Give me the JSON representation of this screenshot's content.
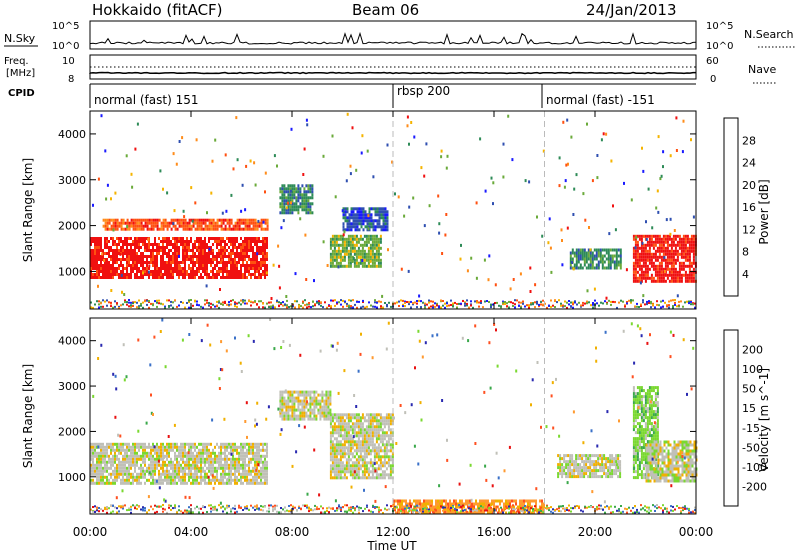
{
  "header": {
    "station": "Hokkaido (fitACF)",
    "beam": "Beam 06",
    "date": "24/Jan/2013"
  },
  "top_strip": {
    "left_labels": {
      "nsky": "N.Sky",
      "freq_line1": "Freq.",
      "freq_line2": "[MHz]",
      "cpid": "CPID"
    },
    "right_labels": {
      "nsearch": "N.Search",
      "nave": "Nave"
    },
    "nsky_ticks": [
      "10^5",
      "10^0"
    ],
    "nsearch_ticks": [
      "10^5",
      "10^0"
    ],
    "freq_ticks": [
      "10",
      "8"
    ],
    "nave_ticks": [
      "60",
      "0"
    ],
    "cpid_segments": [
      {
        "label": "normal (fast) 151",
        "start_hour": 0
      },
      {
        "label": "rbsp 200",
        "start_hour": 12
      },
      {
        "label": "normal (fast) -151",
        "start_hour": 18
      }
    ]
  },
  "x_axis": {
    "label": "Time UT",
    "ticks": [
      "00:00",
      "04:00",
      "08:00",
      "12:00",
      "16:00",
      "20:00",
      "00:00"
    ],
    "range_hours": [
      0,
      24
    ]
  },
  "y_axis": {
    "label": "Slant Range [km]",
    "ticks": [
      "1000",
      "2000",
      "3000",
      "4000"
    ],
    "range_km": [
      180,
      4500
    ]
  },
  "colors": {
    "power": [
      "#1a1aff",
      "#2f4fb0",
      "#2e8b57",
      "#6aaa3a",
      "#f5b400",
      "#ff8c1a",
      "#ff5010",
      "#f01010"
    ],
    "velocity": [
      "#e81010",
      "#ff5020",
      "#ff9a30",
      "#f0b000",
      "#c0c0b8",
      "#7ad830",
      "#3aa84a",
      "#3a70c8",
      "#2a2ab0"
    ]
  },
  "chart_data": [
    {
      "type": "heatmap",
      "title": "Power",
      "colorbar_label": "Power [dB]",
      "colorbar_ticks": [
        "4",
        "8",
        "12",
        "16",
        "20",
        "24",
        "28"
      ],
      "x_range": [
        "00:00",
        "24:00"
      ],
      "y_range_km": [
        180,
        4500
      ],
      "regions": [
        {
          "t": [
            0.0,
            7.0
          ],
          "r": [
            850,
            1750
          ],
          "level": 7
        },
        {
          "t": [
            0.5,
            7.0
          ],
          "r": [
            1950,
            2150
          ],
          "level": 6
        },
        {
          "t": [
            7.5,
            8.8
          ],
          "r": [
            2300,
            2900
          ],
          "level": 2
        },
        {
          "t": [
            9.5,
            11.5
          ],
          "r": [
            1100,
            1800
          ],
          "level": 3
        },
        {
          "t": [
            10.0,
            11.8
          ],
          "r": [
            1900,
            2400
          ],
          "level": 1
        },
        {
          "t": [
            19.0,
            21.0
          ],
          "r": [
            1100,
            1500
          ],
          "level": 2
        },
        {
          "t": [
            21.5,
            24.0
          ],
          "r": [
            800,
            1800
          ],
          "level": 7
        }
      ]
    },
    {
      "type": "heatmap",
      "title": "Velocity",
      "colorbar_label": "Velocity [m s^-1]",
      "colorbar_ticks": [
        "200",
        "100",
        "50",
        "15",
        "-15",
        "-50",
        "-100",
        "-200"
      ],
      "x_range": [
        "00:00",
        "24:00"
      ],
      "y_range_km": [
        180,
        4500
      ],
      "regions": [
        {
          "t": [
            0.0,
            7.0
          ],
          "r": [
            850,
            1750
          ],
          "level": 4
        },
        {
          "t": [
            7.5,
            9.5
          ],
          "r": [
            2300,
            2900
          ],
          "level": 4
        },
        {
          "t": [
            9.5,
            12.0
          ],
          "r": [
            1000,
            2400
          ],
          "level": 4
        },
        {
          "t": [
            12.0,
            18.0
          ],
          "r": [
            200,
            500
          ],
          "level": 2
        },
        {
          "t": [
            18.5,
            21.0
          ],
          "r": [
            1000,
            1500
          ],
          "level": 4
        },
        {
          "t": [
            21.5,
            22.5
          ],
          "r": [
            1000,
            3000
          ],
          "level": 5
        },
        {
          "t": [
            22.0,
            24.0
          ],
          "r": [
            900,
            1800
          ],
          "level": 4
        }
      ]
    }
  ]
}
